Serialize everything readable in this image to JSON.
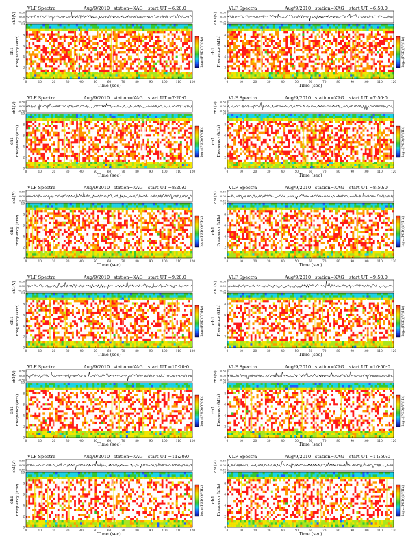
{
  "page": {
    "header_prefix": "VLF Spectra",
    "date": "Aug/9/2010",
    "station_label": "station=KAG",
    "start_prefix": "start  UT ="
  },
  "labels": {
    "waveform_axis": "ch1(V)",
    "channel": "ch1",
    "frequency_axis": "Frequency (kHz)",
    "time_axis": "Time (sec)",
    "colorbar": "log₁₀(PSD)(V²/Hz)"
  },
  "axes": {
    "x_ticks": [
      "0",
      "10",
      "20",
      "30",
      "40",
      "50",
      "60",
      "70",
      "80",
      "90",
      "100",
      "110",
      "120"
    ],
    "freq_ticks": [
      "0",
      "2",
      "4",
      "6",
      "8",
      "10"
    ],
    "wave_ticks": [
      "0.30",
      "0.00",
      "-0.30"
    ],
    "xlim": [
      0,
      120
    ],
    "freq_lim": [
      0,
      10
    ],
    "wave_lim": [
      -0.3,
      0.3
    ]
  },
  "colors": {
    "spectrogram": [
      "#0a0a8c",
      "#1f5cff",
      "#19d3e6",
      "#34c834",
      "#a8e61e",
      "#f2e600",
      "#ff9a00",
      "#ff1a1a",
      "#ffffff"
    ],
    "colorbar": [
      "#0a0a8c",
      "#1f5cff",
      "#19d3e6",
      "#34c834",
      "#a8e61e",
      "#f2e600",
      "#ff9a00",
      "#ff1a1a"
    ]
  },
  "chart_data": [
    {
      "type": "heatmap",
      "start": "6:20:0",
      "description": "ch1 VLF spectrogram, 0-10 kHz"
    },
    {
      "type": "heatmap",
      "start": "6:50:0",
      "description": "ch1 VLF spectrogram, 0-10 kHz"
    },
    {
      "type": "heatmap",
      "start": "7:20:0",
      "description": "ch1 VLF spectrogram, 0-10 kHz"
    },
    {
      "type": "heatmap",
      "start": "7:50:0",
      "description": "ch1 VLF spectrogram, 0-10 kHz"
    },
    {
      "type": "heatmap",
      "start": "8:20:0",
      "description": "ch1 VLF spectrogram, 0-10 kHz"
    },
    {
      "type": "heatmap",
      "start": "8:50:0",
      "description": "ch1 VLF spectrogram, 0-10 kHz"
    },
    {
      "type": "heatmap",
      "start": "9:20:0",
      "description": "ch1 VLF spectrogram, 0-10 kHz"
    },
    {
      "type": "heatmap",
      "start": "9:50:0",
      "description": "ch1 VLF spectrogram, 0-10 kHz"
    },
    {
      "type": "heatmap",
      "start": "10:20:0",
      "description": "ch1 VLF spectrogram, 0-10 kHz"
    },
    {
      "type": "heatmap",
      "start": "10:50:0",
      "description": "ch1 VLF spectrogram, 0-10 kHz"
    },
    {
      "type": "heatmap",
      "start": "11:20:0",
      "description": "ch1 VLF spectrogram, 0-10 kHz"
    },
    {
      "type": "heatmap",
      "start": "11:50:0",
      "description": "ch1 VLF spectrogram, 0-10 kHz"
    }
  ]
}
